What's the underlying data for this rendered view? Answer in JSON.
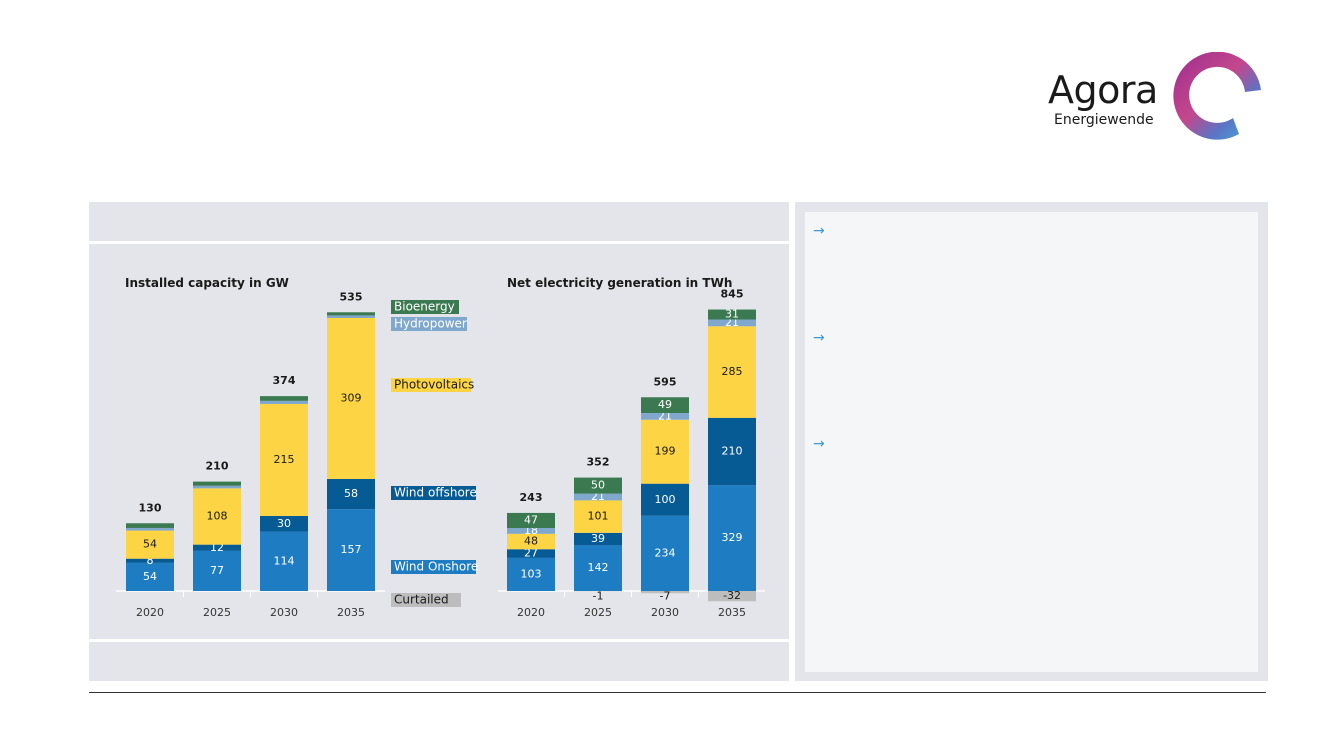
{
  "brand": {
    "name": "Agora",
    "sub": "Energiewende"
  },
  "side_bullets": [
    {
      "icon": "arrow-right-icon"
    },
    {
      "icon": "arrow-right-icon"
    },
    {
      "icon": "arrow-right-icon"
    }
  ],
  "colors": {
    "wind_onshore": "#1d7cc2",
    "wind_offshore": "#075b95",
    "photovoltaics": "#fdd544",
    "hydropower": "#7fa8cc",
    "bioenergy": "#3b7a50",
    "curtailed": "#bdbdbd",
    "panel": "#e3e5ea"
  },
  "chart_data": [
    {
      "type": "bar",
      "stacked": true,
      "title": "Installed capacity in GW",
      "categories": [
        "2020",
        "2025",
        "2030",
        "2035"
      ],
      "totals": [
        "130",
        "210",
        "374",
        "535"
      ],
      "series": [
        {
          "name": "Wind Onshore",
          "key": "wind_onshore",
          "values": [
            54,
            77,
            114,
            157
          ],
          "labels": [
            "54",
            "77",
            "114",
            "157"
          ]
        },
        {
          "name": "Wind offshore",
          "key": "wind_offshore",
          "values": [
            8,
            12,
            30,
            58
          ],
          "labels": [
            "8",
            "12",
            "30",
            "58"
          ]
        },
        {
          "name": "Photovoltaics",
          "key": "photovoltaics",
          "values": [
            54,
            108,
            215,
            309
          ],
          "labels": [
            "54",
            "108",
            "215",
            "309"
          ]
        },
        {
          "name": "Hydropower",
          "key": "hydropower",
          "values": [
            5,
            5,
            6,
            5
          ],
          "labels": [
            "",
            "",
            "",
            ""
          ]
        },
        {
          "name": "Bioenergy",
          "key": "bioenergy",
          "values": [
            9,
            8,
            9,
            6
          ],
          "labels": [
            "",
            "",
            "",
            ""
          ]
        }
      ],
      "legend": [
        "Bioenergy",
        "Hydropower",
        "Photovoltaics",
        "Wind offshore",
        "Wind Onshore",
        "Curtailed"
      ]
    },
    {
      "type": "bar",
      "stacked": true,
      "title": "Net electricity generation in TWh",
      "categories": [
        "2020",
        "2025",
        "2030",
        "2035"
      ],
      "totals": [
        "243",
        "352",
        "595",
        "845"
      ],
      "series": [
        {
          "name": "Curtailed",
          "key": "curtailed",
          "values": [
            0,
            -1,
            -7,
            -32
          ],
          "labels": [
            "",
            "-1",
            "-7",
            "-32"
          ]
        },
        {
          "name": "Wind Onshore",
          "key": "wind_onshore",
          "values": [
            103,
            142,
            234,
            329
          ],
          "labels": [
            "103",
            "142",
            "234",
            "329"
          ]
        },
        {
          "name": "Wind offshore",
          "key": "wind_offshore",
          "values": [
            27,
            39,
            100,
            210
          ],
          "labels": [
            "27",
            "39",
            "100",
            "210"
          ]
        },
        {
          "name": "Photovoltaics",
          "key": "photovoltaics",
          "values": [
            48,
            101,
            199,
            285
          ],
          "labels": [
            "48",
            "101",
            "199",
            "285"
          ]
        },
        {
          "name": "Hydropower",
          "key": "hydropower",
          "values": [
            18,
            21,
            21,
            21
          ],
          "labels": [
            "18",
            "21",
            "21",
            "21"
          ]
        },
        {
          "name": "Bioenergy",
          "key": "bioenergy",
          "values": [
            47,
            50,
            49,
            31
          ],
          "labels": [
            "47",
            "50",
            "49",
            "31"
          ]
        }
      ]
    }
  ]
}
